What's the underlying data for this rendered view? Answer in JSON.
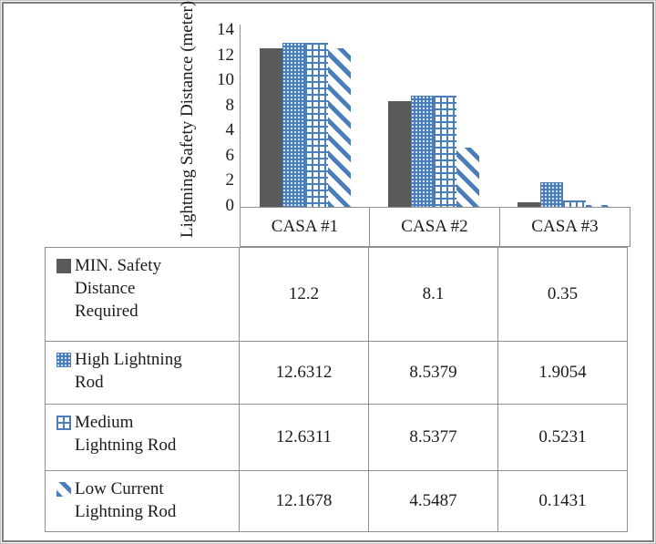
{
  "chart_data": {
    "type": "bar",
    "title": "",
    "ylabel": "Lightning Safety Distance (meter)",
    "xlabel": "",
    "ylim": [
      0,
      14
    ],
    "y_tick_labels_top_to_bottom": [
      "14",
      "12",
      "10",
      "8",
      "4",
      "6",
      "2",
      "0"
    ],
    "grid": "off",
    "legend_position": "left-column-of-data-table",
    "categories": [
      "CASA #1",
      "CASA #2",
      "CASA #3"
    ],
    "series": [
      {
        "name": "MIN. Safety Distance Required",
        "label_lines": [
          "MIN. Safety",
          "Distance",
          "Required"
        ],
        "pattern": "solid-gray",
        "values": [
          12.2,
          8.1,
          0.35
        ],
        "display": [
          "12.2",
          "8.1",
          "0.35"
        ]
      },
      {
        "name": "High Lightning Rod",
        "label_lines": [
          "High Lightning",
          "Rod"
        ],
        "pattern": "dots",
        "values": [
          12.6312,
          8.5379,
          1.9054
        ],
        "display": [
          "12.6312",
          "8.5379",
          "1.9054"
        ]
      },
      {
        "name": "Medium Lightning Rod",
        "label_lines": [
          "Medium",
          "Lightning Rod"
        ],
        "pattern": "grid",
        "values": [
          12.6311,
          8.5377,
          0.5231
        ],
        "display": [
          "12.6311",
          "8.5377",
          "0.5231"
        ]
      },
      {
        "name": "Low Current Lightning Rod",
        "label_lines": [
          "Low Current",
          "Lightning Rod"
        ],
        "pattern": "diagonal",
        "values": [
          12.1678,
          4.5487,
          0.1431
        ],
        "display": [
          "12.1678",
          "4.5487",
          "0.1431"
        ]
      }
    ],
    "colors": {
      "bar_gray": "#5a5a5a",
      "pattern_blue": "#4a7ebb",
      "table_border_gray": "#8f8f8f",
      "frame_outer_gray": "#c4c4c4",
      "frame_inner_gray": "#7e7e7e",
      "text": "#1b1b1b"
    }
  }
}
